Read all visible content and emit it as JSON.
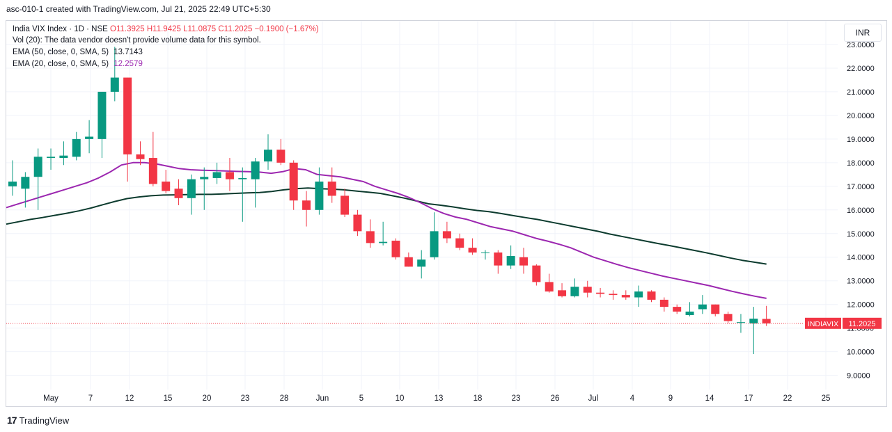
{
  "header": {
    "title": "asc-010-1 created with TradingView.com, Jul 21, 2025 22:49 UTC+5:30"
  },
  "legend": {
    "symbol": "India VIX Index · 1D · NSE",
    "ohlc": "O11.3925 H11.9425 L11.0875 C11.2025 −0.1900 (−1.67%)",
    "vol": "Vol (20): The data vendor doesn't provide volume data for this symbol.",
    "ema50_label": "EMA (50, close, 0, SMA, 5)",
    "ema50_value": "13.7143",
    "ema20_label": "EMA (20, close, 0, SMA, 5)",
    "ema20_value": "12.2579"
  },
  "currency": "INR",
  "price_badge": {
    "symbol": "INDIAVIX",
    "value": "11.2025"
  },
  "footer": {
    "brand": "TradingView"
  },
  "colors": {
    "up": "#089981",
    "down": "#f23645",
    "ema50": "#0c3b2e",
    "ema20": "#9c27b0",
    "grid": "#f0f3fa"
  },
  "chart_data": {
    "type": "candlestick",
    "ylim": [
      8.4,
      24.0
    ],
    "y_ticks": [
      "23.0000",
      "22.0000",
      "21.0000",
      "20.0000",
      "19.0000",
      "18.0000",
      "17.0000",
      "16.0000",
      "15.0000",
      "14.0000",
      "13.0000",
      "12.0000",
      "11.0000",
      "10.0000",
      "9.0000"
    ],
    "x_ticks": [
      "May",
      "7",
      "12",
      "15",
      "20",
      "23",
      "28",
      "Jun",
      "5",
      "10",
      "13",
      "18",
      "23",
      "26",
      "Jul",
      "4",
      "9",
      "14",
      "17",
      "22",
      "25"
    ],
    "candles": [
      {
        "o": 17.0,
        "h": 18.1,
        "l": 16.6,
        "c": 17.2
      },
      {
        "o": 16.9,
        "h": 17.6,
        "l": 16.1,
        "c": 17.4
      },
      {
        "o": 17.4,
        "h": 18.6,
        "l": 16.0,
        "c": 18.25
      },
      {
        "o": 18.2,
        "h": 18.6,
        "l": 17.7,
        "c": 18.25
      },
      {
        "o": 18.2,
        "h": 18.9,
        "l": 17.9,
        "c": 18.3
      },
      {
        "o": 18.25,
        "h": 19.3,
        "l": 18.1,
        "c": 19.0
      },
      {
        "o": 19.0,
        "h": 19.8,
        "l": 18.4,
        "c": 19.1
      },
      {
        "o": 19.0,
        "h": 20.9,
        "l": 18.2,
        "c": 21.0
      },
      {
        "o": 21.0,
        "h": 22.9,
        "l": 20.6,
        "c": 21.6
      },
      {
        "o": 21.6,
        "h": 21.6,
        "l": 17.2,
        "c": 18.35
      },
      {
        "o": 18.35,
        "h": 18.9,
        "l": 17.9,
        "c": 18.15
      },
      {
        "o": 18.2,
        "h": 19.3,
        "l": 17.0,
        "c": 17.1
      },
      {
        "o": 17.2,
        "h": 17.7,
        "l": 16.7,
        "c": 16.8
      },
      {
        "o": 16.9,
        "h": 17.3,
        "l": 16.2,
        "c": 16.5
      },
      {
        "o": 16.5,
        "h": 17.5,
        "l": 15.8,
        "c": 17.3
      },
      {
        "o": 17.3,
        "h": 17.8,
        "l": 16.0,
        "c": 17.4
      },
      {
        "o": 17.35,
        "h": 18.0,
        "l": 17.1,
        "c": 17.6
      },
      {
        "o": 17.6,
        "h": 18.2,
        "l": 16.8,
        "c": 17.3
      },
      {
        "o": 17.3,
        "h": 17.8,
        "l": 15.5,
        "c": 17.35
      },
      {
        "o": 17.3,
        "h": 18.2,
        "l": 16.1,
        "c": 18.05
      },
      {
        "o": 18.05,
        "h": 19.2,
        "l": 17.7,
        "c": 18.55
      },
      {
        "o": 18.55,
        "h": 19.0,
        "l": 17.9,
        "c": 18.0
      },
      {
        "o": 18.0,
        "h": 18.1,
        "l": 16.0,
        "c": 16.4
      },
      {
        "o": 16.4,
        "h": 16.8,
        "l": 15.3,
        "c": 16.0
      },
      {
        "o": 16.0,
        "h": 17.8,
        "l": 15.8,
        "c": 17.2
      },
      {
        "o": 17.2,
        "h": 17.8,
        "l": 16.3,
        "c": 16.6
      },
      {
        "o": 16.6,
        "h": 16.9,
        "l": 15.7,
        "c": 15.8
      },
      {
        "o": 15.8,
        "h": 16.0,
        "l": 14.9,
        "c": 15.1
      },
      {
        "o": 15.1,
        "h": 15.6,
        "l": 14.4,
        "c": 14.6
      },
      {
        "o": 14.6,
        "h": 15.5,
        "l": 14.5,
        "c": 14.65
      },
      {
        "o": 14.7,
        "h": 14.8,
        "l": 13.9,
        "c": 14.0
      },
      {
        "o": 14.0,
        "h": 14.2,
        "l": 13.6,
        "c": 13.6
      },
      {
        "o": 13.6,
        "h": 14.3,
        "l": 13.1,
        "c": 13.9
      },
      {
        "o": 14.0,
        "h": 15.9,
        "l": 13.9,
        "c": 15.1
      },
      {
        "o": 15.1,
        "h": 15.5,
        "l": 14.6,
        "c": 14.8
      },
      {
        "o": 14.8,
        "h": 15.0,
        "l": 14.3,
        "c": 14.4
      },
      {
        "o": 14.4,
        "h": 14.8,
        "l": 14.1,
        "c": 14.2
      },
      {
        "o": 14.2,
        "h": 14.3,
        "l": 13.9,
        "c": 14.2
      },
      {
        "o": 14.2,
        "h": 14.3,
        "l": 13.3,
        "c": 13.65
      },
      {
        "o": 13.65,
        "h": 14.5,
        "l": 13.5,
        "c": 14.05
      },
      {
        "o": 14.0,
        "h": 14.4,
        "l": 13.3,
        "c": 13.65
      },
      {
        "o": 13.65,
        "h": 13.7,
        "l": 12.8,
        "c": 12.95
      },
      {
        "o": 12.95,
        "h": 13.3,
        "l": 12.5,
        "c": 12.55
      },
      {
        "o": 12.6,
        "h": 12.9,
        "l": 12.3,
        "c": 12.35
      },
      {
        "o": 12.35,
        "h": 13.1,
        "l": 12.3,
        "c": 12.75
      },
      {
        "o": 12.75,
        "h": 13.0,
        "l": 12.3,
        "c": 12.5
      },
      {
        "o": 12.5,
        "h": 12.7,
        "l": 12.3,
        "c": 12.45
      },
      {
        "o": 12.45,
        "h": 12.6,
        "l": 12.2,
        "c": 12.4
      },
      {
        "o": 12.4,
        "h": 12.6,
        "l": 12.2,
        "c": 12.3
      },
      {
        "o": 12.3,
        "h": 12.8,
        "l": 11.9,
        "c": 12.55
      },
      {
        "o": 12.55,
        "h": 12.6,
        "l": 12.1,
        "c": 12.2
      },
      {
        "o": 12.2,
        "h": 12.3,
        "l": 11.7,
        "c": 11.9
      },
      {
        "o": 11.9,
        "h": 12.0,
        "l": 11.6,
        "c": 11.7
      },
      {
        "o": 11.55,
        "h": 12.1,
        "l": 11.5,
        "c": 11.7
      },
      {
        "o": 11.8,
        "h": 12.4,
        "l": 11.6,
        "c": 12.0
      },
      {
        "o": 12.0,
        "h": 12.0,
        "l": 11.5,
        "c": 11.6
      },
      {
        "o": 11.6,
        "h": 11.7,
        "l": 11.2,
        "c": 11.3
      },
      {
        "o": 11.25,
        "h": 11.6,
        "l": 10.8,
        "c": 11.25
      },
      {
        "o": 11.2,
        "h": 11.9,
        "l": 9.9,
        "c": 11.4
      },
      {
        "o": 11.39,
        "h": 11.94,
        "l": 11.09,
        "c": 11.2
      }
    ],
    "ema50": [
      15.4,
      15.5,
      15.6,
      15.68,
      15.77,
      15.86,
      15.96,
      16.08,
      16.22,
      16.36,
      16.48,
      16.55,
      16.6,
      16.63,
      16.64,
      16.65,
      16.66,
      16.66,
      16.68,
      16.7,
      16.72,
      16.74,
      16.78,
      16.85,
      16.9,
      16.93,
      16.9,
      16.88,
      16.85,
      16.8,
      16.75,
      16.7,
      16.6,
      16.5,
      16.38,
      16.26,
      16.2,
      16.13,
      16.05,
      15.98,
      15.93,
      15.85,
      15.76,
      15.68,
      15.6,
      15.5,
      15.4,
      15.3,
      15.2,
      15.1,
      14.98,
      14.88,
      14.78,
      14.68,
      14.58,
      14.49,
      14.39,
      14.29,
      14.19,
      14.08,
      13.97,
      13.87,
      13.79,
      13.71
    ],
    "ema20": [
      16.1,
      16.25,
      16.4,
      16.55,
      16.7,
      16.85,
      17.0,
      17.15,
      17.35,
      17.6,
      17.9,
      18.0,
      18.0,
      17.95,
      17.85,
      17.75,
      17.7,
      17.68,
      17.67,
      17.65,
      17.63,
      17.62,
      17.6,
      17.55,
      17.62,
      17.75,
      17.7,
      17.5,
      17.45,
      17.4,
      17.3,
      17.2,
      17.0,
      16.85,
      16.7,
      16.52,
      16.3,
      16.05,
      15.85,
      15.7,
      15.6,
      15.45,
      15.3,
      15.2,
      15.1,
      14.95,
      14.8,
      14.68,
      14.55,
      14.4,
      14.2,
      14.0,
      13.85,
      13.7,
      13.56,
      13.44,
      13.32,
      13.2,
      13.1,
      13.0,
      12.9,
      12.8,
      12.68,
      12.56,
      12.45,
      12.35,
      12.26
    ]
  }
}
